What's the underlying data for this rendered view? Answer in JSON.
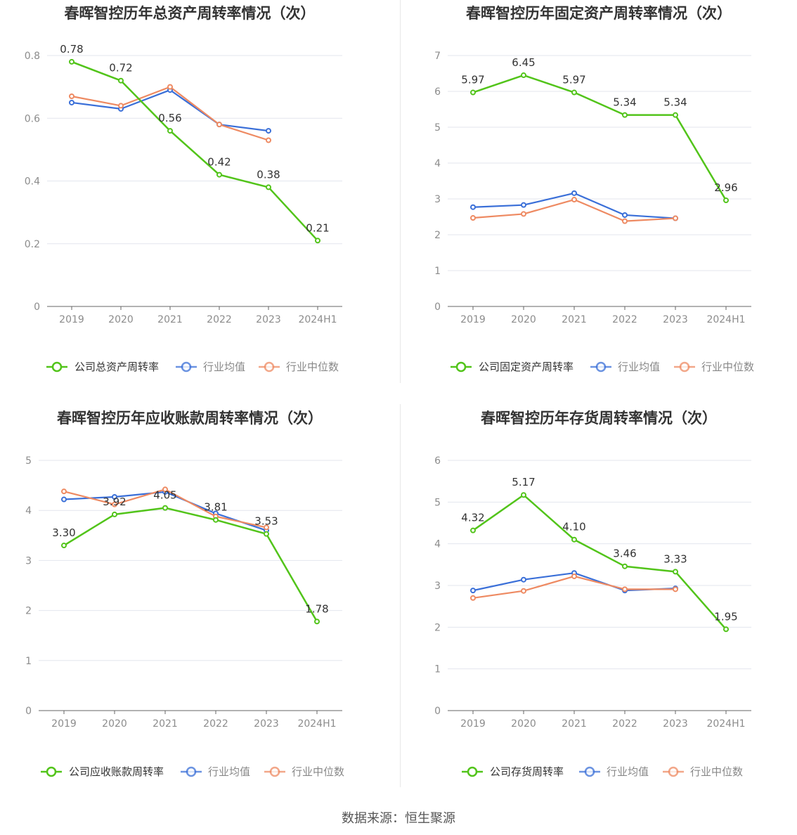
{
  "colors": {
    "company": "#52c41a",
    "industry_avg": "#3a6fd8",
    "industry_median": "#ee8a62",
    "grid": "#e3e6ee",
    "axis": "#666666",
    "tick": "#8c8c8c",
    "label": "#333333"
  },
  "footer": "数据来源：恒生聚源",
  "chart_data": [
    {
      "type": "line",
      "title": "春晖智控历年总资产周转率情况（次）",
      "categories": [
        "2019",
        "2020",
        "2021",
        "2022",
        "2023",
        "2024H1"
      ],
      "yticks": [
        0,
        0.2,
        0.4,
        0.6,
        0.8
      ],
      "ytick_labels": [
        "0",
        "0.2",
        "0.4",
        "0.6",
        "0.8"
      ],
      "ylim": [
        0,
        0.8
      ],
      "series": [
        {
          "name": "公司总资产周转率",
          "role": "company",
          "values": [
            0.78,
            0.72,
            0.56,
            0.42,
            0.38,
            0.21
          ],
          "labels": [
            "0.78",
            "0.72",
            "0.56",
            "0.42",
            "0.38",
            "0.21"
          ]
        },
        {
          "name": "行业均值",
          "role": "industry_avg",
          "values": [
            0.65,
            0.63,
            0.69,
            0.58,
            0.56,
            null
          ]
        },
        {
          "name": "行业中位数",
          "role": "industry_median",
          "values": [
            0.67,
            0.64,
            0.7,
            0.58,
            0.53,
            null
          ]
        }
      ]
    },
    {
      "type": "line",
      "title": "春晖智控历年固定资产周转率情况（次）",
      "categories": [
        "2019",
        "2020",
        "2021",
        "2022",
        "2023",
        "2024H1"
      ],
      "yticks": [
        0,
        1,
        2,
        3,
        4,
        5,
        6,
        7
      ],
      "ytick_labels": [
        "0",
        "1",
        "2",
        "3",
        "4",
        "5",
        "6",
        "7"
      ],
      "ylim": [
        0,
        7
      ],
      "series": [
        {
          "name": "公司固定资产周转率",
          "role": "company",
          "values": [
            5.97,
            6.45,
            5.97,
            5.34,
            5.34,
            2.96
          ],
          "labels": [
            "5.97",
            "6.45",
            "5.97",
            "5.34",
            "5.34",
            "2.96"
          ]
        },
        {
          "name": "行业均值",
          "role": "industry_avg",
          "values": [
            2.77,
            2.83,
            3.16,
            2.55,
            2.46,
            null
          ]
        },
        {
          "name": "行业中位数",
          "role": "industry_median",
          "values": [
            2.47,
            2.58,
            2.98,
            2.38,
            2.46,
            null
          ]
        }
      ]
    },
    {
      "type": "line",
      "title": "春晖智控历年应收账款周转率情况（次）",
      "categories": [
        "2019",
        "2020",
        "2021",
        "2022",
        "2023",
        "2024H1"
      ],
      "yticks": [
        0,
        1,
        2,
        3,
        4,
        5
      ],
      "ytick_labels": [
        "0",
        "1",
        "2",
        "3",
        "4",
        "5"
      ],
      "ylim": [
        0,
        5
      ],
      "series": [
        {
          "name": "公司应收账款周转率",
          "role": "company",
          "values": [
            3.3,
            3.92,
            4.05,
            3.81,
            3.53,
            1.78
          ],
          "labels": [
            "3.30",
            "3.92",
            "4.05",
            "3.81",
            "3.53",
            "1.78"
          ]
        },
        {
          "name": "行业均值",
          "role": "industry_avg",
          "values": [
            4.22,
            4.27,
            4.37,
            3.94,
            3.6,
            null
          ]
        },
        {
          "name": "行业中位数",
          "role": "industry_median",
          "values": [
            4.38,
            4.12,
            4.42,
            3.88,
            3.66,
            null
          ]
        }
      ]
    },
    {
      "type": "line",
      "title": "春晖智控历年存货周转率情况（次）",
      "categories": [
        "2019",
        "2020",
        "2021",
        "2022",
        "2023",
        "2024H1"
      ],
      "yticks": [
        0,
        1,
        2,
        3,
        4,
        5,
        6
      ],
      "ytick_labels": [
        "0",
        "1",
        "2",
        "3",
        "4",
        "5",
        "6"
      ],
      "ylim": [
        0,
        6
      ],
      "series": [
        {
          "name": "公司存货周转率",
          "role": "company",
          "values": [
            4.32,
            5.17,
            4.1,
            3.46,
            3.33,
            1.95
          ],
          "labels": [
            "4.32",
            "5.17",
            "4.10",
            "3.46",
            "3.33",
            "1.95"
          ]
        },
        {
          "name": "行业均值",
          "role": "industry_avg",
          "values": [
            2.88,
            3.14,
            3.3,
            2.88,
            2.93,
            null
          ]
        },
        {
          "name": "行业中位数",
          "role": "industry_median",
          "values": [
            2.7,
            2.87,
            3.22,
            2.91,
            2.91,
            null
          ]
        }
      ]
    }
  ]
}
